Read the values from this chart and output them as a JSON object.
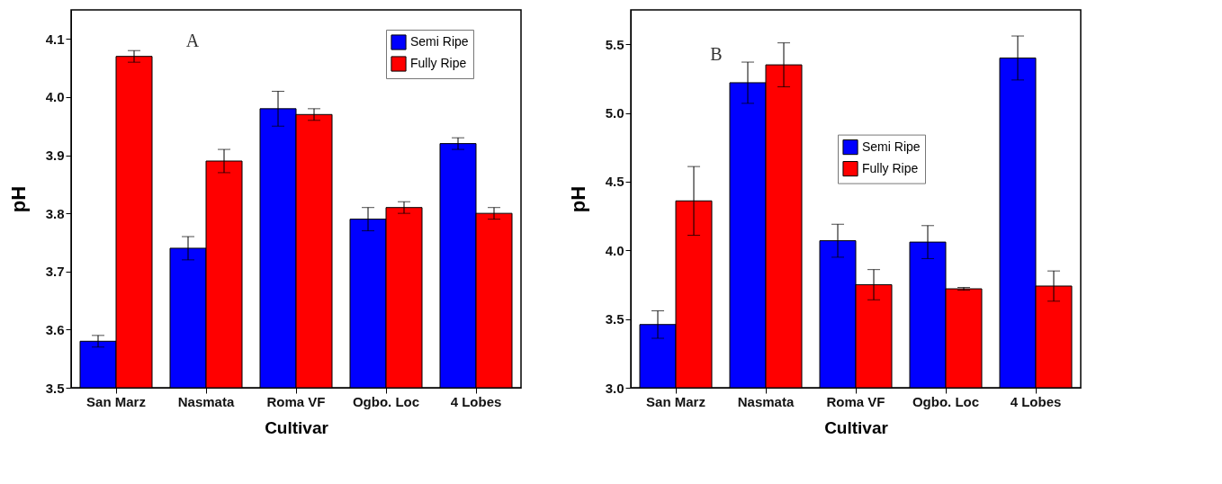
{
  "chart_data": [
    {
      "type": "bar",
      "annotations": [
        "A"
      ],
      "xlabel": "Cultivar",
      "ylabel": "pH",
      "categories": [
        "San Marz",
        "Nasmata",
        "Roma VF",
        "Ogbo. Loc",
        "4 Lobes"
      ],
      "ylim": [
        3.5,
        4.15
      ],
      "yticks": [
        3.5,
        3.6,
        3.7,
        3.8,
        3.9,
        {
          "value": 4,
          "label": "4.0"
        },
        4.1
      ],
      "legend": "top right",
      "grid": false,
      "series": [
        {
          "name": "Semi Ripe",
          "color": "#0000ff",
          "values": [
            3.58,
            3.74,
            3.98,
            3.79,
            3.92
          ],
          "errors": [
            0.01,
            0.02,
            0.03,
            0.02,
            0.01
          ]
        },
        {
          "name": "Fully Ripe",
          "color": "#ff0000",
          "values": [
            4.07,
            3.89,
            3.97,
            3.81,
            3.8
          ],
          "errors": [
            0.01,
            0.02,
            0.01,
            0.01,
            0.01
          ]
        }
      ]
    },
    {
      "type": "bar",
      "annotations": [
        "B"
      ],
      "xlabel": "Cultivar",
      "ylabel": "pH",
      "categories": [
        "San Marz",
        "Nasmata",
        "Roma VF",
        "Ogbo. Loc",
        "4 Lobes"
      ],
      "ylim": [
        3.0,
        5.75
      ],
      "yticks": [
        {
          "value": 3,
          "label": "3.0"
        },
        3.5,
        {
          "value": 4,
          "label": "4.0"
        },
        4.5,
        {
          "value": 5,
          "label": "5.0"
        },
        5.5
      ],
      "legend": "top",
      "grid": false,
      "series": [
        {
          "name": "Semi Ripe",
          "color": "#0000ff",
          "values": [
            3.46,
            5.22,
            4.07,
            4.06,
            5.4
          ],
          "errors": [
            0.1,
            0.15,
            0.12,
            0.12,
            0.16
          ]
        },
        {
          "name": "Fully Ripe",
          "color": "#ff0000",
          "values": [
            4.36,
            5.35,
            3.75,
            3.72,
            3.74
          ],
          "errors": [
            0.25,
            0.16,
            0.11,
            0.01,
            0.11
          ]
        }
      ]
    }
  ]
}
